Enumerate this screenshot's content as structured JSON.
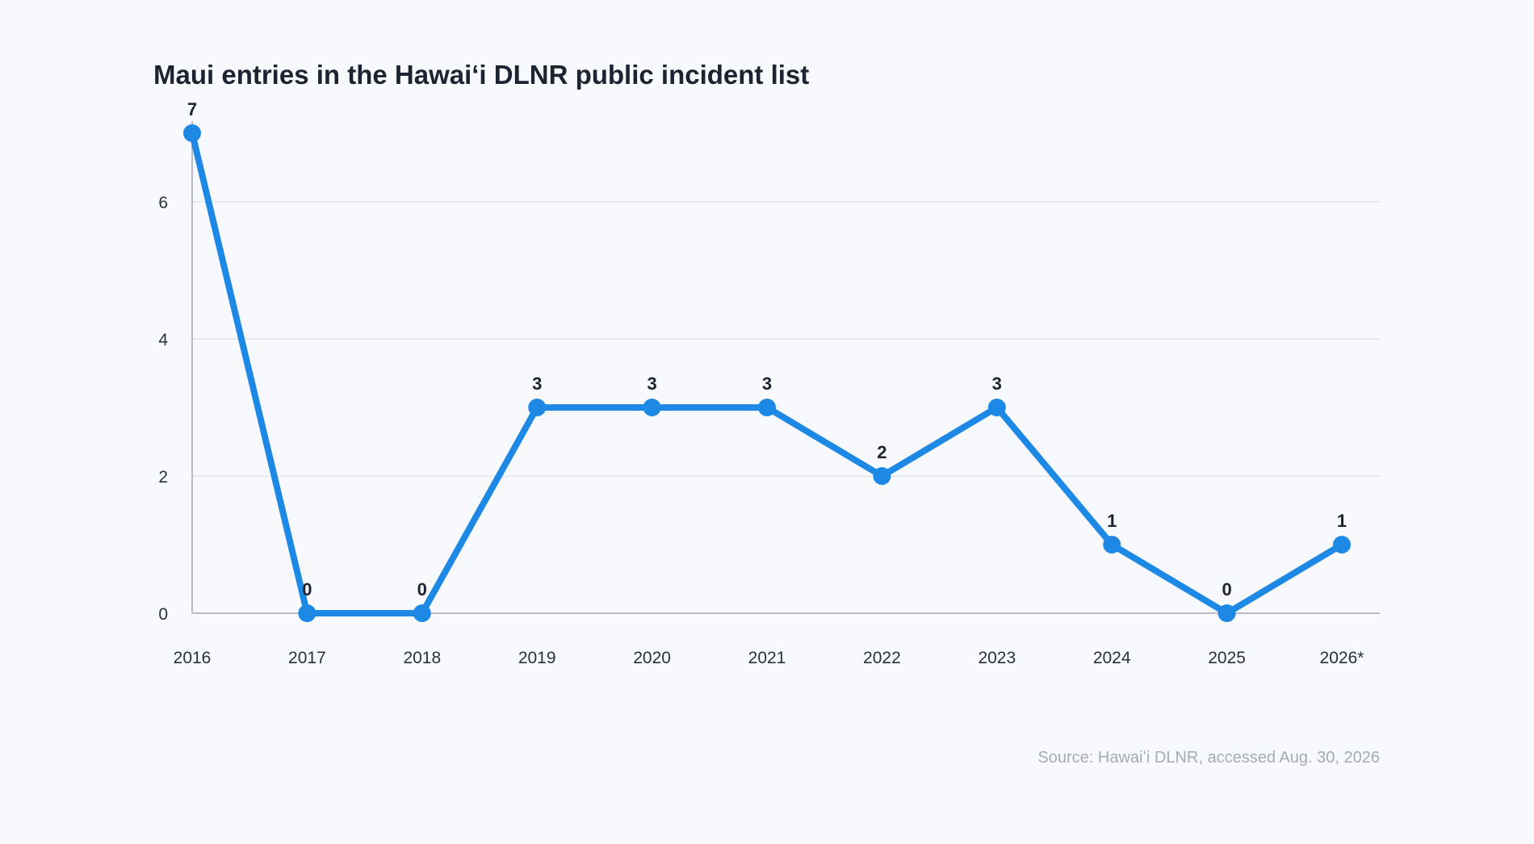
{
  "chart_data": {
    "type": "line",
    "title": "Maui entries in the Hawaiʻi DLNR public incident list",
    "xlabel": "",
    "ylabel": "",
    "categories": [
      "2016",
      "2017",
      "2018",
      "2019",
      "2020",
      "2021",
      "2022",
      "2023",
      "2024",
      "2025",
      "2026*"
    ],
    "series": [
      {
        "values": [
          7,
          0,
          0,
          3,
          3,
          3,
          2,
          3,
          1,
          0,
          1
        ],
        "color": "#1e88e5"
      }
    ],
    "y_ticks": [
      "0",
      "2",
      "4",
      "6"
    ],
    "ylim": [
      0,
      7
    ],
    "grid": true,
    "data_labels": true,
    "source": "Source: Hawaiʻi DLNR, accessed Aug. 30, 2026"
  }
}
